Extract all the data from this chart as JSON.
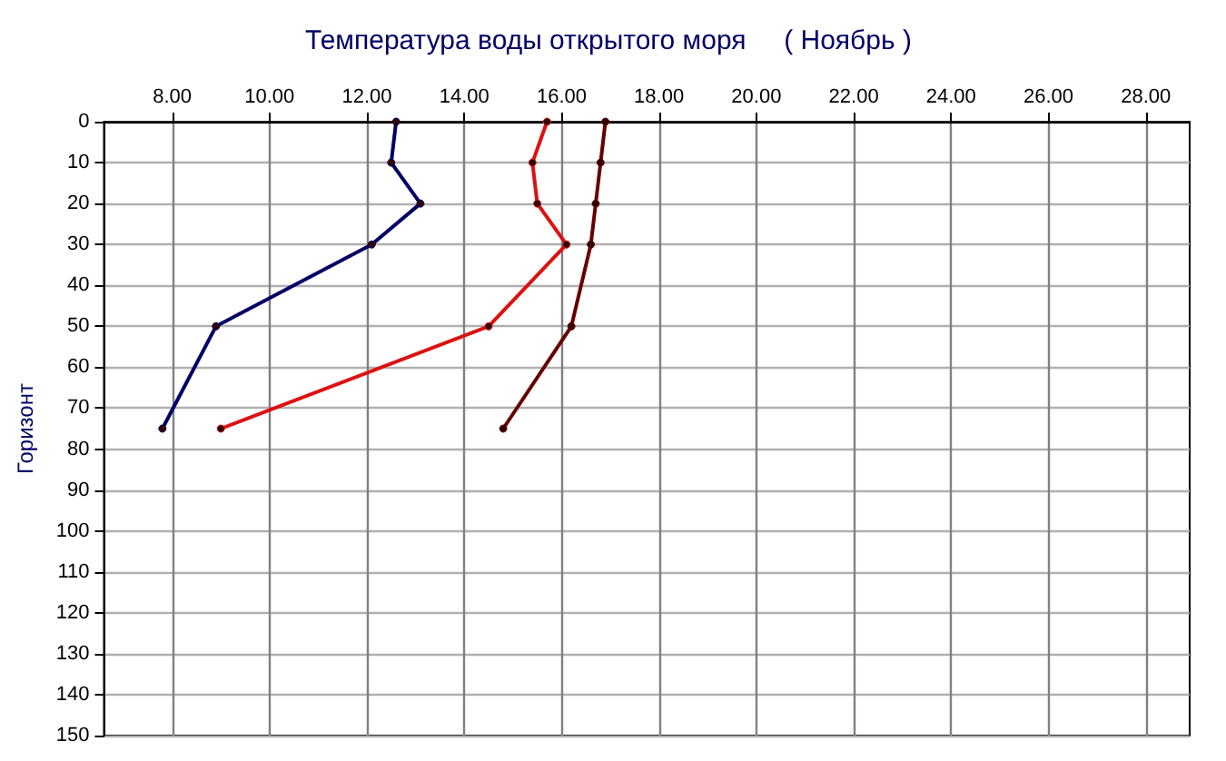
{
  "chart_data": {
    "type": "line",
    "title": "Температура воды открытого моря     ( Ноябрь )",
    "ylabel": "Горизонт",
    "series": [
      {
        "color": "#000066",
        "x": [
          12.6,
          12.5,
          13.1,
          12.1,
          8.9,
          7.8
        ],
        "values": [
          0,
          10,
          20,
          30,
          50,
          75
        ]
      },
      {
        "color": "#dd1111",
        "x": [
          15.7,
          15.4,
          15.5,
          16.1,
          14.5,
          9.0
        ],
        "values": [
          0,
          10,
          20,
          30,
          50,
          75
        ]
      },
      {
        "color": "#660000",
        "x": [
          16.9,
          16.8,
          16.7,
          16.6,
          16.2,
          14.8
        ],
        "values": [
          0,
          10,
          20,
          30,
          50,
          75
        ]
      }
    ],
    "xlim": [
      6.6,
      28.9
    ],
    "xticks": [
      {
        "value": 8,
        "label": "8.00"
      },
      {
        "value": 10,
        "label": "10.00"
      },
      {
        "value": 12,
        "label": "12.00"
      },
      {
        "value": 14,
        "label": "14.00"
      },
      {
        "value": 16,
        "label": "16.00"
      },
      {
        "value": 18,
        "label": "18.00"
      },
      {
        "value": 20,
        "label": "20.00"
      },
      {
        "value": 22,
        "label": "22.00"
      },
      {
        "value": 24,
        "label": "24.00"
      },
      {
        "value": 26,
        "label": "26.00"
      },
      {
        "value": 28,
        "label": "28.00"
      }
    ],
    "ylim": [
      150,
      0
    ],
    "yticks": [
      0,
      10,
      20,
      30,
      40,
      50,
      60,
      70,
      80,
      90,
      100,
      110,
      120,
      130,
      140,
      150
    ],
    "grid": true,
    "marker": "circle",
    "line_style": "solid"
  }
}
